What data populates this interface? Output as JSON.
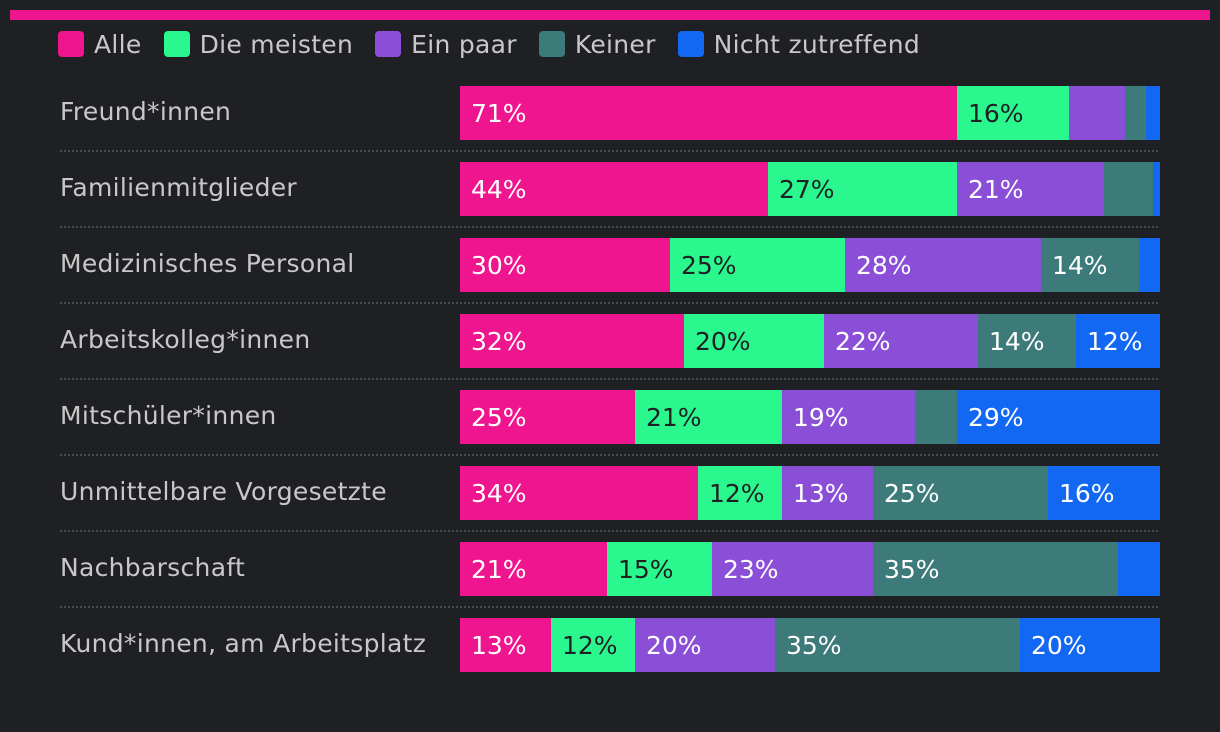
{
  "colors": {
    "background": "#1f2023",
    "top_bar": "#ef158f",
    "separator": "#5a5b60",
    "label_light": "#ffffff",
    "label_dark": "#1f2023"
  },
  "legend": [
    {
      "label": "Alle",
      "color": "#ef158f"
    },
    {
      "label": "Die meisten",
      "color": "#2af78e"
    },
    {
      "label": "Ein paar",
      "color": "#8a4fd6"
    },
    {
      "label": "Keiner",
      "color": "#3d7b7a"
    },
    {
      "label": "Nicht zutreffend",
      "color": "#1268f3"
    }
  ],
  "chart_data": {
    "type": "bar",
    "orientation": "horizontal",
    "stacked": true,
    "normalized": true,
    "xlim": [
      0,
      100
    ],
    "unit": "%",
    "legend_position": "top-left",
    "grid": false,
    "categories": [
      "Freund*innen",
      "Familienmitglieder",
      "Medizinisches Personal",
      "Arbeitskolleg*innen",
      "Mitschüler*innen",
      "Unmittelbare Vorgesetzte",
      "Nachbarschaft",
      "Kund*innen, am Arbeitsplatz"
    ],
    "series": [
      {
        "name": "Alle",
        "color": "#ef158f",
        "values": [
          71,
          44,
          30,
          32,
          25,
          34,
          21,
          13
        ]
      },
      {
        "name": "Die meisten",
        "color": "#2af78e",
        "values": [
          16,
          27,
          25,
          20,
          21,
          12,
          15,
          12
        ]
      },
      {
        "name": "Ein paar",
        "color": "#8a4fd6",
        "values": [
          8,
          21,
          28,
          22,
          19,
          13,
          23,
          20
        ]
      },
      {
        "name": "Keiner",
        "color": "#3d7b7a",
        "values": [
          3,
          7,
          14,
          14,
          6,
          25,
          35,
          35
        ]
      },
      {
        "name": "Nicht zutreffend",
        "color": "#1268f3",
        "values": [
          2,
          1,
          3,
          12,
          29,
          16,
          6,
          20
        ]
      }
    ],
    "show_label_min": 10
  }
}
